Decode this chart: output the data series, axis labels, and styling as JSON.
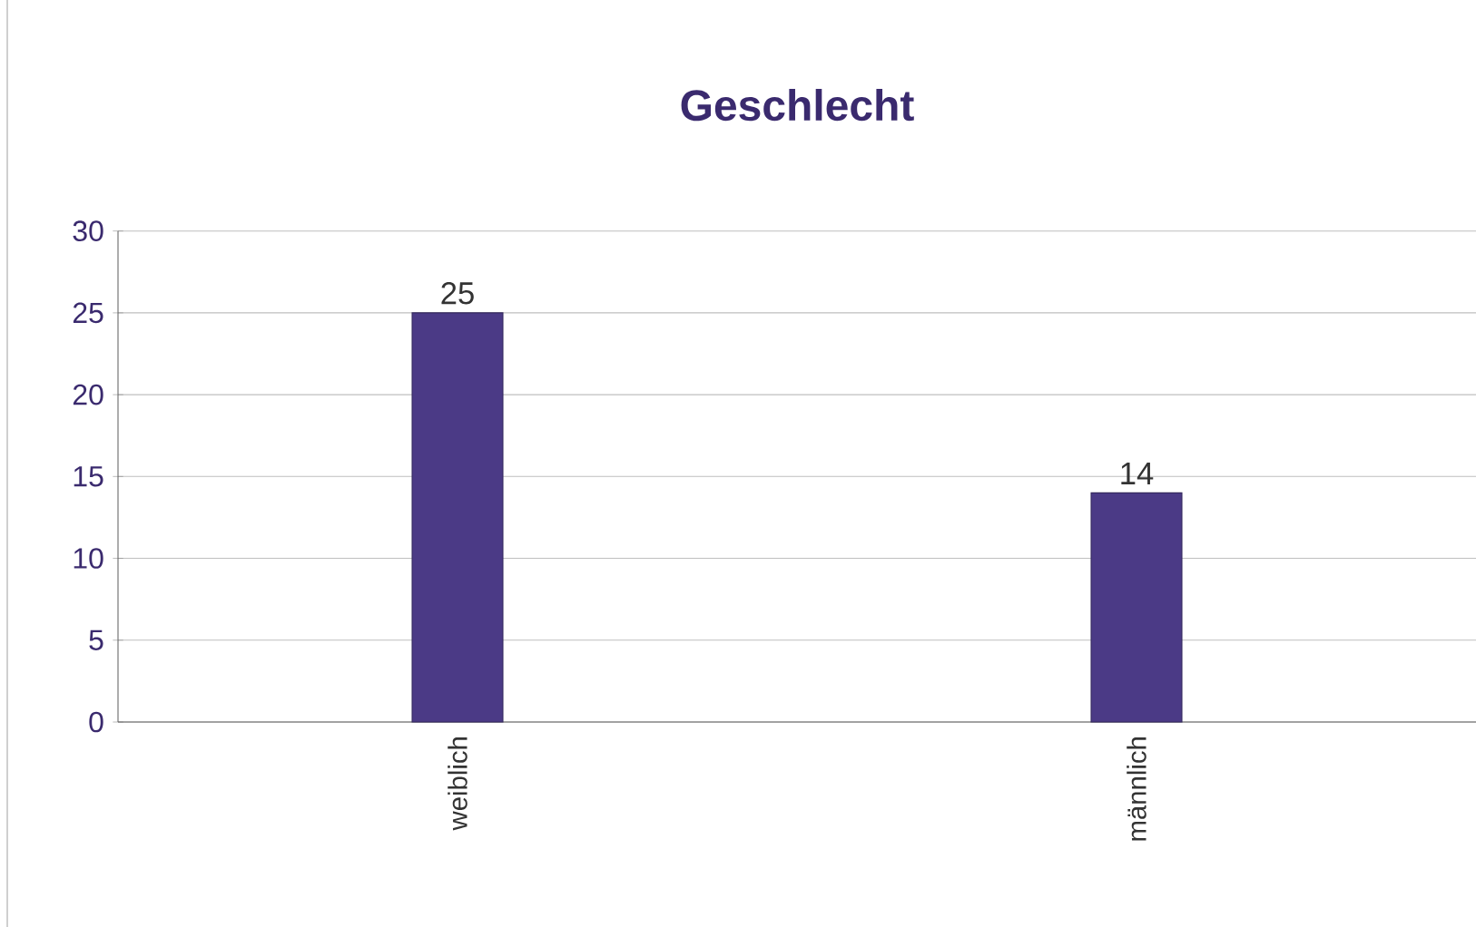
{
  "chart_data": {
    "type": "bar",
    "title": "Geschlecht",
    "categories": [
      "weiblich",
      "männlich"
    ],
    "values": [
      25,
      14
    ],
    "color": "#4b3a86",
    "ylim": [
      0,
      30
    ],
    "yticks": [
      0,
      5,
      10,
      15,
      20,
      25,
      30
    ],
    "grid": "y",
    "data_labels": true
  }
}
